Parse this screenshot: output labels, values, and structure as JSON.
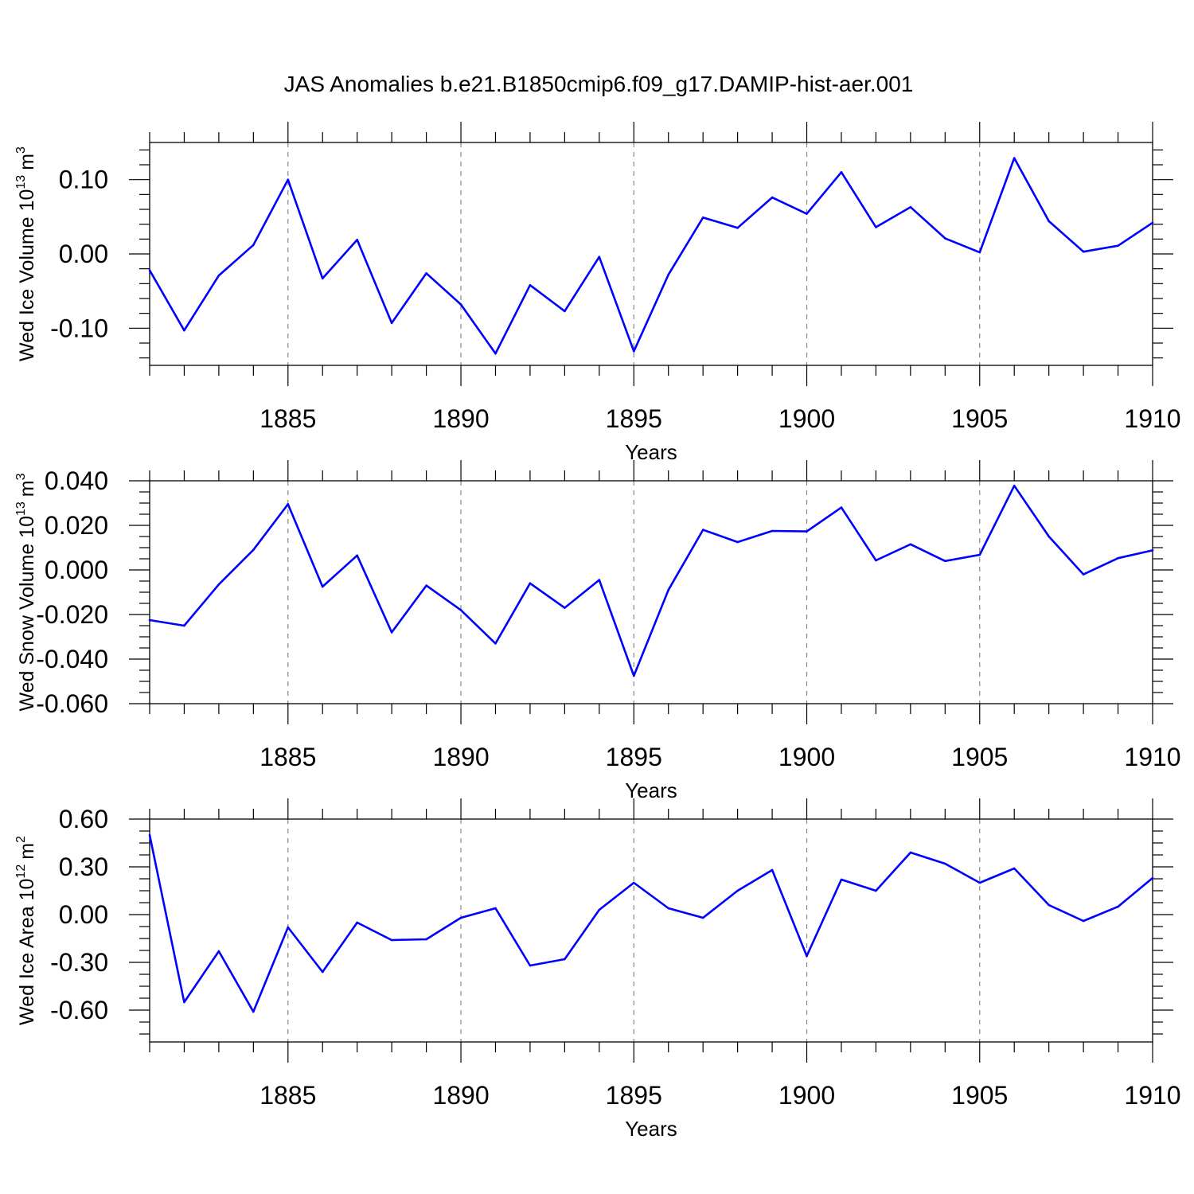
{
  "title": "JAS Anomalies b.e21.B1850cmip6.f09_g17.DAMIP-hist-aer.001",
  "chart_data": [
    {
      "type": "line",
      "ylabel": "Wed Ice Volume 10",
      "ylabel_exp": "13",
      "ylabel_unit": "m",
      "ylabel_unit_exp": "3",
      "xlabel": "Years",
      "xlim": [
        1881,
        1910
      ],
      "ylim": [
        -0.15,
        0.15
      ],
      "yticks": [
        -0.1,
        0.0,
        0.1
      ],
      "ytick_labels": [
        "-0.10",
        "0.00",
        "0.10"
      ],
      "yminor_step": 0.02,
      "xticks": [
        1885,
        1890,
        1895,
        1900,
        1905,
        1910
      ],
      "xtick_labels": [
        "1885",
        "1890",
        "1895",
        "1900",
        "1905",
        "1910"
      ],
      "color": "#0000ff",
      "x": [
        1881,
        1882,
        1883,
        1884,
        1885,
        1886,
        1887,
        1888,
        1889,
        1890,
        1891,
        1892,
        1893,
        1894,
        1895,
        1896,
        1897,
        1898,
        1899,
        1900,
        1901,
        1902,
        1903,
        1904,
        1905,
        1906,
        1907,
        1908,
        1909,
        1910
      ],
      "values": [
        -0.022,
        -0.103,
        -0.029,
        0.012,
        0.1,
        -0.033,
        0.019,
        -0.093,
        -0.026,
        -0.068,
        -0.134,
        -0.042,
        -0.077,
        -0.004,
        -0.131,
        -0.028,
        0.049,
        0.035,
        0.076,
        0.054,
        0.11,
        0.036,
        0.063,
        0.021,
        0.002,
        0.129,
        0.044,
        0.003,
        0.011,
        0.042
      ]
    },
    {
      "type": "line",
      "ylabel": "Wed Snow Volume 10",
      "ylabel_exp": "13",
      "ylabel_unit": "m",
      "ylabel_unit_exp": "3",
      "xlabel": "Years",
      "xlim": [
        1881,
        1910
      ],
      "ylim": [
        -0.06,
        0.04
      ],
      "yticks": [
        -0.06,
        -0.04,
        -0.02,
        0.0,
        0.02,
        0.04
      ],
      "ytick_labels": [
        "-0.060",
        "-0.040",
        "-0.020",
        "0.000",
        "0.020",
        "0.040"
      ],
      "yminor_step": 0.005,
      "xticks": [
        1885,
        1890,
        1895,
        1900,
        1905,
        1910
      ],
      "xtick_labels": [
        "1885",
        "1890",
        "1895",
        "1900",
        "1905",
        "1910"
      ],
      "color": "#0000ff",
      "x": [
        1881,
        1882,
        1883,
        1884,
        1885,
        1886,
        1887,
        1888,
        1889,
        1890,
        1891,
        1892,
        1893,
        1894,
        1895,
        1896,
        1897,
        1898,
        1899,
        1900,
        1901,
        1902,
        1903,
        1904,
        1905,
        1906,
        1907,
        1908,
        1909,
        1910
      ],
      "values": [
        -0.0225,
        -0.025,
        -0.0065,
        0.009,
        0.0295,
        -0.0075,
        0.0065,
        -0.028,
        -0.007,
        -0.018,
        -0.033,
        -0.006,
        -0.017,
        -0.0045,
        -0.0475,
        -0.009,
        0.018,
        0.0125,
        0.0175,
        0.0173,
        0.028,
        0.0043,
        0.0115,
        0.004,
        0.0068,
        0.0378,
        0.015,
        -0.002,
        0.0053,
        0.0088
      ]
    },
    {
      "type": "line",
      "ylabel": "Wed Ice Area 10",
      "ylabel_exp": "12",
      "ylabel_unit": "m",
      "ylabel_unit_exp": "2",
      "xlabel": "Years",
      "xlim": [
        1881,
        1910
      ],
      "ylim": [
        -0.8,
        0.6
      ],
      "yticks": [
        -0.6,
        -0.3,
        0.0,
        0.3,
        0.6
      ],
      "ytick_labels": [
        "-0.60",
        "-0.30",
        "0.00",
        "0.30",
        "0.60"
      ],
      "yminor_step": 0.075,
      "xticks": [
        1885,
        1890,
        1895,
        1900,
        1905,
        1910
      ],
      "xtick_labels": [
        "1885",
        "1890",
        "1895",
        "1900",
        "1905",
        "1910"
      ],
      "color": "#0000ff",
      "x": [
        1881,
        1882,
        1883,
        1884,
        1885,
        1886,
        1887,
        1888,
        1889,
        1890,
        1891,
        1892,
        1893,
        1894,
        1895,
        1896,
        1897,
        1898,
        1899,
        1900,
        1901,
        1902,
        1903,
        1904,
        1905,
        1906,
        1907,
        1908,
        1909,
        1910
      ],
      "values": [
        0.5,
        -0.55,
        -0.23,
        -0.61,
        -0.08,
        -0.36,
        -0.05,
        -0.16,
        -0.155,
        -0.02,
        0.04,
        -0.32,
        -0.28,
        0.03,
        0.2,
        0.04,
        -0.02,
        0.15,
        0.28,
        -0.26,
        0.22,
        0.15,
        0.39,
        0.32,
        0.2,
        0.29,
        0.06,
        -0.04,
        0.05,
        0.23
      ]
    }
  ]
}
